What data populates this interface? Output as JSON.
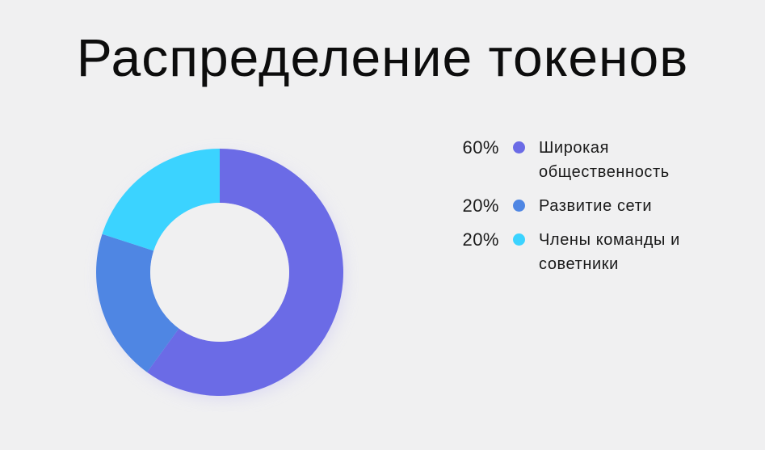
{
  "title": "Распределение токенов",
  "chart_data": {
    "type": "pie",
    "donut": true,
    "title": "Распределение токенов",
    "legend_position": "right",
    "slices": [
      {
        "label": "Широкая общественность",
        "value": 60,
        "display": "60%",
        "color": "#6b6be6"
      },
      {
        "label": "Развитие сети",
        "value": 20,
        "display": "20%",
        "color": "#4f86e3"
      },
      {
        "label": "Члены команды и советники",
        "value": 20,
        "display": "20%",
        "color": "#3bd3ff"
      }
    ]
  }
}
